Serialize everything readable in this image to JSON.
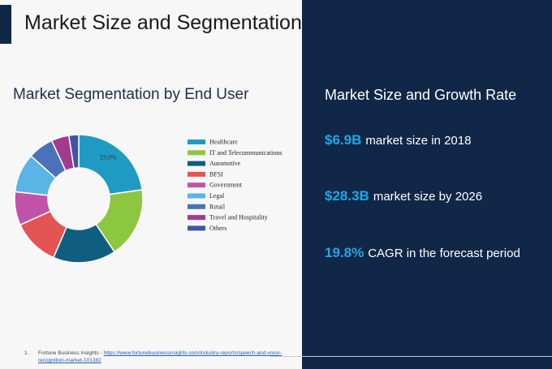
{
  "slide": {
    "title": "Market Size and Segmentation"
  },
  "segmentation": {
    "heading": "Market Segmentation by End User"
  },
  "chart_data": {
    "type": "pie",
    "variant": "donut",
    "title": "",
    "legend_position": "right",
    "categories": [
      "Healthcare",
      "IT and Telecommunications",
      "Automotive",
      "BFSI",
      "Government",
      "Legal",
      "Retail",
      "Travel and Hospitality",
      "Others"
    ],
    "values": [
      23.0,
      18.0,
      16.0,
      12.0,
      8.5,
      10.0,
      6.5,
      4.5,
      2.5
    ],
    "colors": [
      "#1f9bc3",
      "#8dc63f",
      "#0f5e80",
      "#e55454",
      "#c052a8",
      "#5cb3e6",
      "#4a72b8",
      "#a23a8e",
      "#3f55a6"
    ],
    "labels": [
      {
        "category": "Healthcare",
        "text": "23.0%"
      }
    ]
  },
  "growth": {
    "heading": "Market Size and Growth Rate",
    "stats": [
      {
        "value": "$6.9B",
        "text": "market size in 2018"
      },
      {
        "value": "$28.3B",
        "text": "market size by 2026"
      },
      {
        "value": "19.8%",
        "text": "CAGR in the forecast period"
      }
    ]
  },
  "footnote": {
    "number": "1.",
    "source": "Fortune Business Insights - ",
    "link": "https://www.fortunebusinessinsights.com/industry-reports/speech-and-voice-recognition-market-101382"
  }
}
